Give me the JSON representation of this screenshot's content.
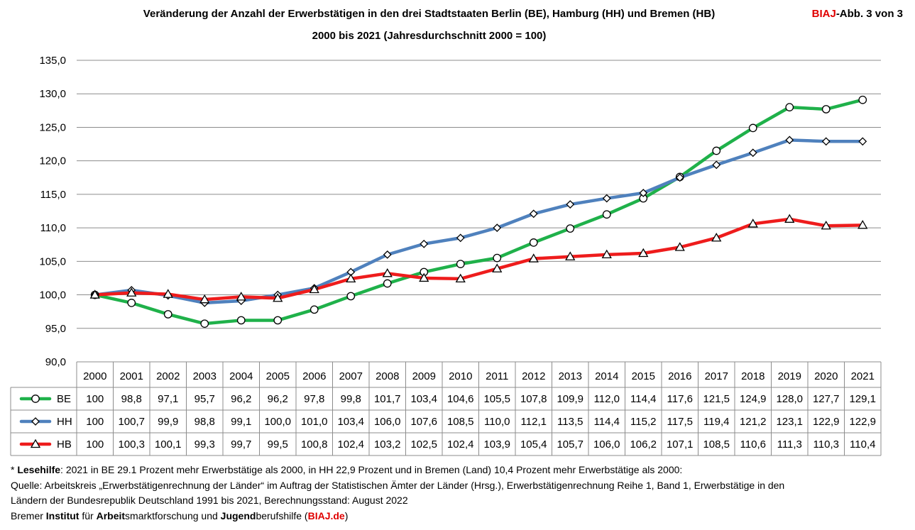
{
  "chart_data": {
    "type": "line",
    "title": "Veränderung der Anzahl der Erwerbstätigen in den drei Stadtstaaten Berlin (BE), Hamburg (HH) und Bremen (HB)",
    "subtitle": "2000 bis 2021 (Jahresdurchschnitt 2000 = 100)",
    "x": [
      "2000",
      "2001",
      "2002",
      "2003",
      "2004",
      "2005",
      "2006",
      "2007",
      "2008",
      "2009",
      "2010",
      "2011",
      "2012",
      "2013",
      "2014",
      "2015",
      "2016",
      "2017",
      "2018",
      "2019",
      "2020",
      "2021"
    ],
    "y_ticks": [
      "135,0",
      "130,0",
      "125,0",
      "120,0",
      "115,0",
      "110,0",
      "105,0",
      "100,0",
      "95,0",
      "90,0"
    ],
    "ylim": [
      90,
      135
    ],
    "grid": true,
    "legend": "data-table-below",
    "series": [
      {
        "name": "BE",
        "color": "#1fb14a",
        "marker": "circle",
        "values": [
          100,
          98.8,
          97.1,
          95.7,
          96.2,
          96.2,
          97.8,
          99.8,
          101.7,
          103.4,
          104.6,
          105.5,
          107.8,
          109.9,
          112.0,
          114.4,
          117.6,
          121.5,
          124.9,
          128.0,
          127.7,
          129.1
        ],
        "labels": [
          "100",
          "98,8",
          "97,1",
          "95,7",
          "96,2",
          "96,2",
          "97,8",
          "99,8",
          "101,7",
          "103,4",
          "104,6",
          "105,5",
          "107,8",
          "109,9",
          "112,0",
          "114,4",
          "117,6",
          "121,5",
          "124,9",
          "128,0",
          "127,7",
          "129,1"
        ]
      },
      {
        "name": "HH",
        "color": "#4f81bd",
        "marker": "diamond",
        "values": [
          100,
          100.7,
          99.9,
          98.8,
          99.1,
          100.0,
          101.0,
          103.4,
          106.0,
          107.6,
          108.5,
          110.0,
          112.1,
          113.5,
          114.4,
          115.2,
          117.5,
          119.4,
          121.2,
          123.1,
          122.9,
          122.9
        ],
        "labels": [
          "100",
          "100,7",
          "99,9",
          "98,8",
          "99,1",
          "100,0",
          "101,0",
          "103,4",
          "106,0",
          "107,6",
          "108,5",
          "110,0",
          "112,1",
          "113,5",
          "114,4",
          "115,2",
          "117,5",
          "119,4",
          "121,2",
          "123,1",
          "122,9",
          "122,9"
        ]
      },
      {
        "name": "HB",
        "color": "#ee1c1c",
        "marker": "triangle",
        "values": [
          100,
          100.3,
          100.1,
          99.3,
          99.7,
          99.5,
          100.8,
          102.4,
          103.2,
          102.5,
          102.4,
          103.9,
          105.4,
          105.7,
          106.0,
          106.2,
          107.1,
          108.5,
          110.6,
          111.3,
          110.3,
          110.4
        ],
        "labels": [
          "100",
          "100,3",
          "100,1",
          "99,3",
          "99,7",
          "99,5",
          "100,8",
          "102,4",
          "103,2",
          "102,5",
          "102,4",
          "103,9",
          "105,4",
          "105,7",
          "106,0",
          "106,2",
          "107,1",
          "108,5",
          "110,6",
          "111,3",
          "110,3",
          "110,4"
        ]
      }
    ]
  },
  "badge": {
    "brand": "BIAJ",
    "rest": "-Abb. 3 von 3"
  },
  "notes": {
    "line1_prefix": "* ",
    "line1_bold": "Lesehilfe",
    "line1_text": ": 2021 in BE 29.1 Prozent mehr Erwerbstätige als 2000, in HH 22,9 Prozent und in Bremen (Land) 10,4 Prozent mehr Erwerbstätige als 2000:",
    "line2": "Quelle: Arbeitskreis „Erwerbstätigenrechnung der Länder“ im Auftrag der Statistischen Ämter der Länder (Hrsg.), Erwerbstätigenrechnung Reihe 1, Band 1, Erwerbstätige in den",
    "line3": "Ländern der Bundesrepublik Deutschland 1991 bis 2021, Berechnungsstand: August 2022",
    "line4": [
      {
        "t": "Bremer ",
        "b": false
      },
      {
        "t": "Institut",
        "b": true
      },
      {
        "t": " für ",
        "b": false
      },
      {
        "t": "Arbeit",
        "b": true
      },
      {
        "t": "smarktforschung und ",
        "b": false
      },
      {
        "t": "Jugend",
        "b": true
      },
      {
        "t": "berufshilfe (",
        "b": false
      }
    ],
    "line4_link": "BIAJ.de",
    "line4_end": ")"
  }
}
